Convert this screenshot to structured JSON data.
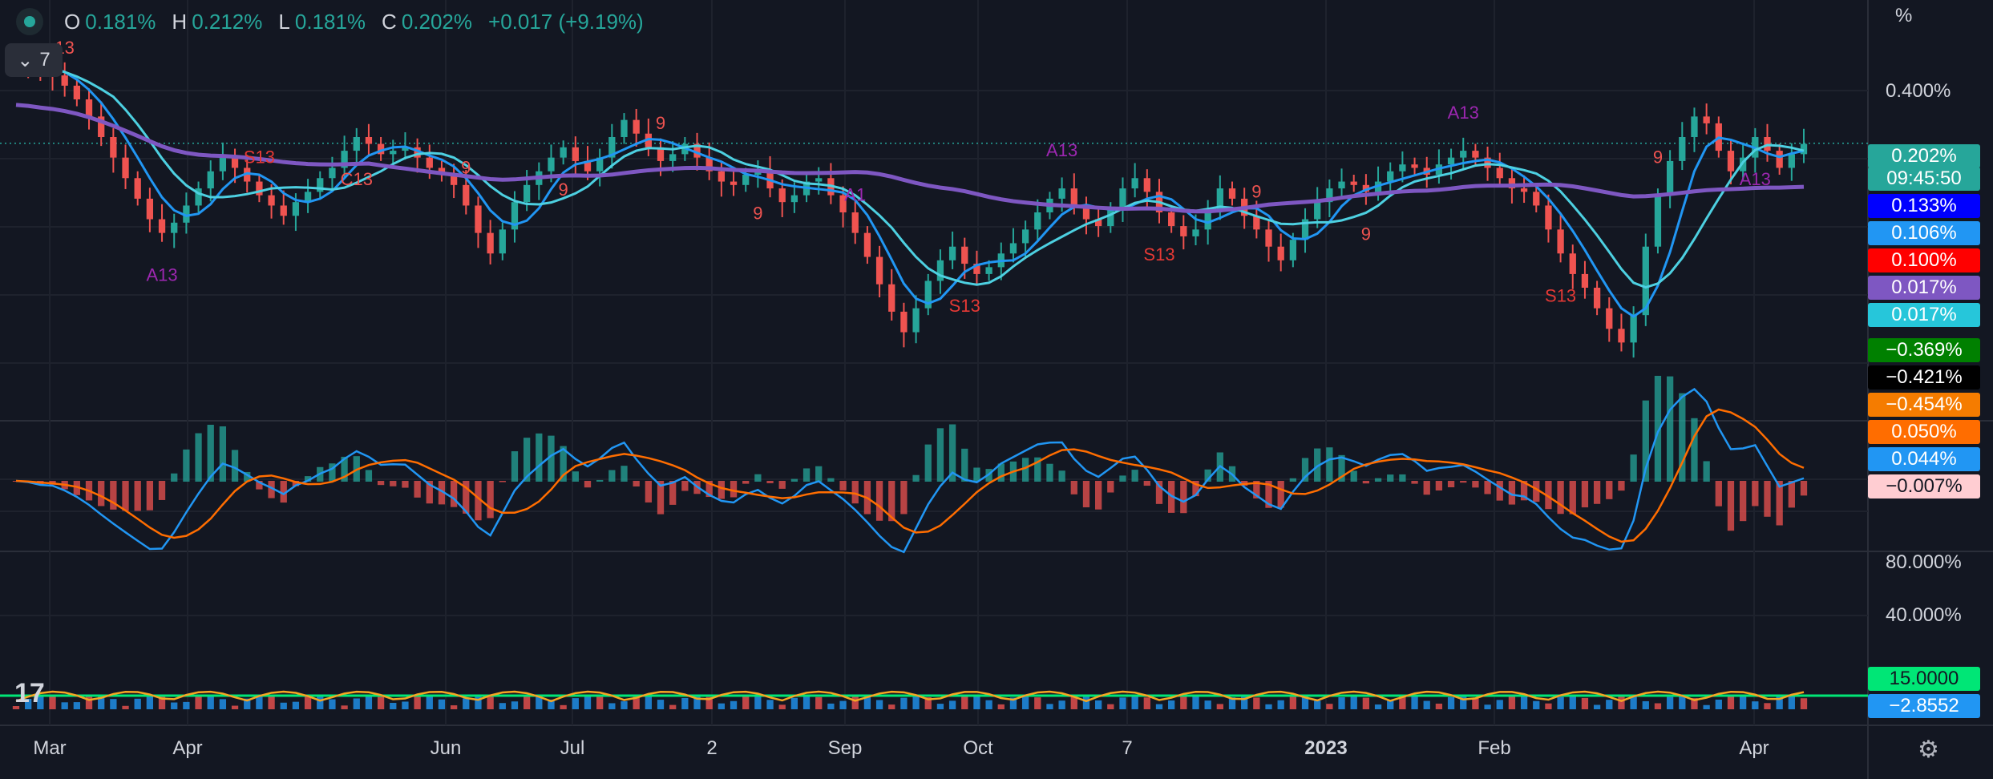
{
  "ohlc": {
    "o_key": "O",
    "o_val": "0.181%",
    "h_key": "H",
    "h_val": "0.212%",
    "l_key": "L",
    "l_val": "0.181%",
    "c_key": "C",
    "c_val": "0.202%",
    "change": "+0.017 (+9.19%)"
  },
  "collapse_count": "7",
  "axis_unit": "%",
  "right_axis": {
    "main": [
      "0.400%"
    ],
    "osc": [
      "80.000%",
      "40.000%"
    ]
  },
  "price_tags": [
    {
      "text": "0.202%",
      "bg": "#26a69a",
      "fg": "#ffffff"
    },
    {
      "text": "09:45:50",
      "bg": "#26a69a",
      "fg": "#ffffff"
    },
    {
      "text": "0.133%",
      "bg": "#0000ff",
      "fg": "#ffffff"
    },
    {
      "text": "0.106%",
      "bg": "#2196f3",
      "fg": "#ffffff"
    },
    {
      "text": "0.100%",
      "bg": "#ff0000",
      "fg": "#ffffff"
    },
    {
      "text": "0.017%",
      "bg": "#7e57c2",
      "fg": "#ffffff"
    },
    {
      "text": "0.017%",
      "bg": "#26c6da",
      "fg": "#ffffff"
    },
    {
      "text": "−0.369%",
      "bg": "#008000",
      "fg": "#ffffff"
    },
    {
      "text": "−0.421%",
      "bg": "#000000",
      "fg": "#ffffff"
    },
    {
      "text": "−0.454%",
      "bg": "#f57c00",
      "fg": "#ffffff"
    },
    {
      "text": "0.050%",
      "bg": "#ff6d00",
      "fg": "#ffffff"
    },
    {
      "text": "0.044%",
      "bg": "#2196f3",
      "fg": "#ffffff"
    },
    {
      "text": "−0.007%",
      "bg": "#ffcdd2",
      "fg": "#131722"
    },
    {
      "text": "15.0000",
      "bg": "#00e676",
      "fg": "#131722"
    },
    {
      "text": "−2.8552",
      "bg": "#2196f3",
      "fg": "#ffffff"
    }
  ],
  "x_labels": [
    "Mar",
    "Apr",
    "Jun",
    "Jul",
    "2",
    "Sep",
    "Oct",
    "7",
    "2023",
    "Feb",
    "Apr"
  ],
  "annotations": {
    "td_labels": [
      "13",
      "A13",
      "S13",
      "C13",
      "9",
      "9",
      "9",
      "9",
      "A1",
      "S13",
      "A13",
      "S13",
      "9",
      "9",
      "A13",
      "S13",
      "9",
      "A13"
    ]
  },
  "colors": {
    "up": "#26a69a",
    "down": "#ef5350",
    "ma_fast": "#2196f3",
    "ma_mid": "#4dd0e1",
    "ma_slow": "#7e57c2",
    "macd": "#2196f3",
    "signal": "#ff6d00",
    "osc_line": "#f5a623",
    "osc_level": "#00e676"
  },
  "chart_data": [
    {
      "type": "candlestick",
      "pane": "main",
      "ylabel": "%",
      "ylim": [
        -0.55,
        0.55
      ],
      "x_labels": [
        "Mar",
        "Apr",
        "Jun",
        "Jul",
        "2",
        "Sep",
        "Oct",
        "7",
        "2023",
        "Feb",
        "Apr"
      ],
      "close_series": [
        0.44,
        0.43,
        0.41,
        0.4,
        0.37,
        0.33,
        0.28,
        0.22,
        0.16,
        0.1,
        0.04,
        -0.02,
        -0.06,
        -0.03,
        0.02,
        0.07,
        0.12,
        0.16,
        0.13,
        0.09,
        0.05,
        0.02,
        -0.01,
        0.03,
        0.06,
        0.1,
        0.13,
        0.18,
        0.22,
        0.2,
        0.17,
        0.18,
        0.19,
        0.16,
        0.13,
        0.11,
        0.08,
        0.02,
        -0.06,
        -0.12,
        -0.05,
        0.03,
        0.08,
        0.12,
        0.16,
        0.19,
        0.15,
        0.12,
        0.16,
        0.22,
        0.27,
        0.23,
        0.19,
        0.15,
        0.17,
        0.2,
        0.16,
        0.12,
        0.09,
        0.08,
        0.11,
        0.12,
        0.07,
        0.03,
        0.05,
        0.09,
        0.1,
        0.05,
        0.0,
        -0.06,
        -0.13,
        -0.21,
        -0.29,
        -0.35,
        -0.28,
        -0.2,
        -0.14,
        -0.1,
        -0.15,
        -0.18,
        -0.16,
        -0.12,
        -0.09,
        -0.05,
        0.0,
        0.04,
        0.07,
        0.02,
        -0.02,
        -0.04,
        0.01,
        0.07,
        0.1,
        0.06,
        0.0,
        -0.04,
        -0.07,
        -0.05,
        0.01,
        0.07,
        0.04,
        -0.01,
        -0.05,
        -0.1,
        -0.14,
        -0.08,
        -0.02,
        0.03,
        0.07,
        0.09,
        0.08,
        0.06,
        0.09,
        0.12,
        0.14,
        0.13,
        0.11,
        0.14,
        0.16,
        0.18,
        0.16,
        0.13,
        0.1,
        0.07,
        0.06,
        0.02,
        -0.05,
        -0.12,
        -0.18,
        -0.22,
        -0.28,
        -0.34,
        -0.38,
        -0.3,
        -0.1,
        0.05,
        0.15,
        0.22,
        0.28,
        0.26,
        0.18,
        0.12,
        0.16,
        0.22,
        0.18,
        0.13,
        0.17,
        0.2
      ],
      "moving_averages": [
        {
          "color": "#2196f3",
          "last": 0.133
        },
        {
          "color": "#4dd0e1",
          "last": 0.106
        },
        {
          "color": "#7e57c2",
          "last": 0.017
        }
      ],
      "last_close": 0.202
    },
    {
      "type": "line",
      "pane": "macd",
      "series": [
        {
          "color": "#2196f3",
          "last": 0.044
        },
        {
          "color": "#ff6d00",
          "last": 0.05
        }
      ],
      "histogram_last": -0.007
    },
    {
      "type": "area",
      "pane": "oscillator",
      "y_ticks": [
        "80.000%",
        "40.000%"
      ],
      "level": 15.0,
      "last": -2.8552
    }
  ]
}
